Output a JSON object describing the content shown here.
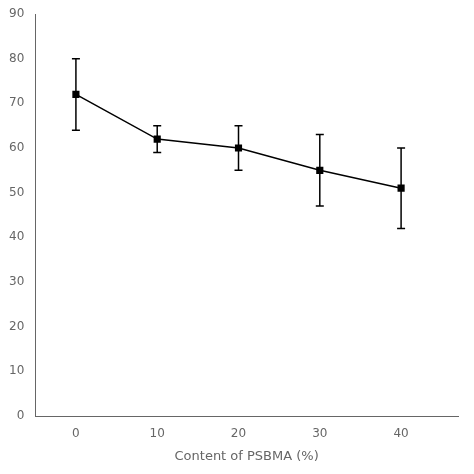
{
  "chart_data": {
    "type": "line",
    "x": [
      0,
      10,
      20,
      30,
      40
    ],
    "values": [
      72,
      62,
      60,
      55,
      51
    ],
    "yerr": [
      8,
      3,
      5,
      8,
      9
    ],
    "xlabel": "Content of PSBMA (%)",
    "xlim": [
      -5,
      47
    ],
    "ylim": [
      0,
      90
    ],
    "xticks": [
      0,
      10,
      20,
      30,
      40
    ],
    "yticks": [
      0,
      10,
      20,
      30,
      40,
      50,
      60,
      70,
      80,
      90
    ],
    "color": "black",
    "marker": "square",
    "line_style": "solid",
    "grid": false
  }
}
